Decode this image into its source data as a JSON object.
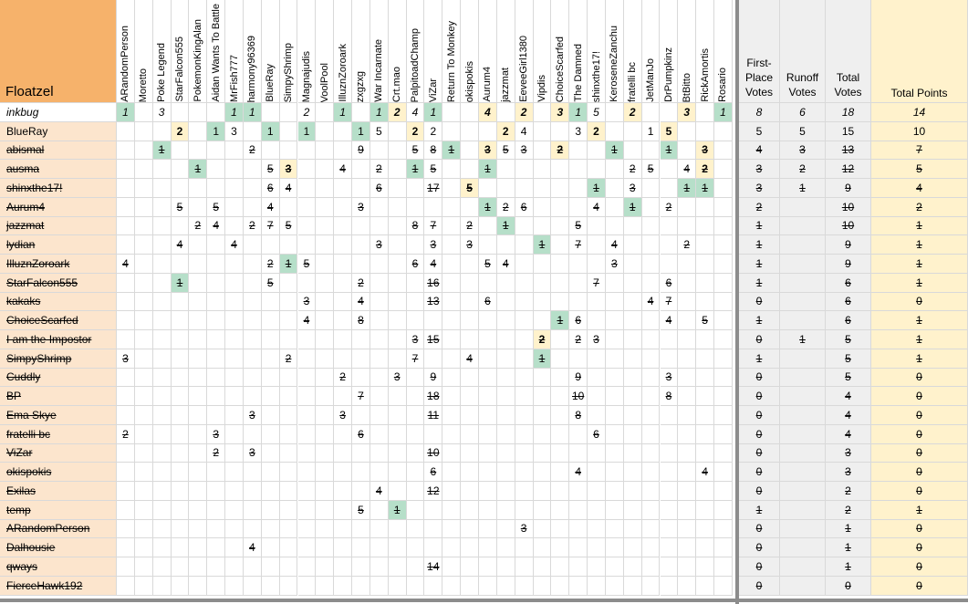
{
  "corner_label": "Floatzel",
  "voters": [
    "ARandomPerson",
    "Moretto",
    "Poke Legend",
    "StarFalcon555",
    "PokemonKingAlan",
    "Aidan Wants To Battle",
    "MrFish777",
    "harmony96369",
    "BlueRay",
    "SimpyShrimp",
    "Magnajudis",
    "VoolPool",
    "IlluznZoroark",
    "zxgzxg",
    "War Incarnate",
    "Crt.mao",
    "PalpitoadChamp",
    "ViZar",
    "Return To Monkey",
    "okispokis",
    "Aurum4",
    "jazzmat",
    "EeveeGirl1380",
    "Vipdis",
    "ChoiceScarfed",
    "The Damned",
    "shinxthe17!",
    "KeroseneZanchu",
    "fratelli bc",
    "JetManJo",
    "DrPumpkinz",
    "BtBitto",
    "RickAmortis",
    "Rosario"
  ],
  "summary_headers": [
    "First-Place Votes",
    "Runoff Votes",
    "Total Votes",
    "Total Points"
  ],
  "colors": {
    "corner": "#f6b26b",
    "row_header": "#fce5cd",
    "first_place": "#b6dfc9",
    "runoff": "#fff2cc",
    "stats": "#efefef",
    "points": "#fff2cc"
  },
  "rows": [
    {
      "name": "inkbug",
      "style": "italic",
      "cells": {
        "0": "1g",
        "2": "3",
        "6": "1g",
        "7": "1g",
        "10": "2",
        "12": "1g",
        "14": "1g",
        "15": "2y",
        "16": "4",
        "17": "1g",
        "20": "4y",
        "22": "2y",
        "24": "3y",
        "25": "1g",
        "26": "5",
        "28": "2y",
        "31": "3y",
        "33": "1g"
      },
      "stats": [
        "8",
        "6",
        "18",
        "14"
      ]
    },
    {
      "name": "BlueRay",
      "style": "normal",
      "cells": {
        "3": "2y",
        "5": "1g",
        "6": "3",
        "8": "1g",
        "10": "1g",
        "13": "1g",
        "14": "5",
        "16": "2y",
        "17": "2",
        "21": "2y",
        "22": "4",
        "25": "3",
        "26": "2y",
        "29": "1",
        "30": "5y"
      },
      "stats": [
        "5",
        "5",
        "15",
        "10"
      ]
    },
    {
      "name": "abismal",
      "style": "strike",
      "cells": {
        "2": "1g",
        "7": "2",
        "13": "9",
        "16": "5",
        "17": "8",
        "18": "1g",
        "20": "3y",
        "21": "5",
        "22": "3",
        "24": "2y",
        "27": "1g",
        "30": "1g",
        "32": "3y"
      },
      "stats": [
        "4",
        "3",
        "13",
        "7"
      ]
    },
    {
      "name": "ausma",
      "style": "strike",
      "cells": {
        "4": "1g",
        "8": "5",
        "9": "3y",
        "12": "4",
        "14": "2",
        "16": "1g",
        "17": "5",
        "20": "1g",
        "28": "2",
        "29": "5",
        "31": "4",
        "32": "2y"
      },
      "stats": [
        "3",
        "2",
        "12",
        "5"
      ]
    },
    {
      "name": "shinxthe17!",
      "style": "strike",
      "cells": {
        "8": "6",
        "9": "4",
        "14": "6",
        "17": "17",
        "19": "5y",
        "26": "1g",
        "28": "3",
        "31": "1g",
        "32": "1g"
      },
      "stats": [
        "3",
        "1",
        "9",
        "4"
      ]
    },
    {
      "name": "Aurum4",
      "style": "strike",
      "cells": {
        "3": "5",
        "5": "5",
        "8": "4",
        "13": "3",
        "20": "1g",
        "21": "2",
        "22": "6",
        "26": "4",
        "28": "1g",
        "30": "2"
      },
      "stats": [
        "2",
        "",
        "10",
        "2"
      ]
    },
    {
      "name": "jazzmat",
      "style": "strike",
      "cells": {
        "4": "2",
        "5": "4",
        "7": "2",
        "8": "7",
        "9": "5",
        "16": "8",
        "17": "7",
        "19": "2",
        "21": "1g",
        "25": "5"
      },
      "stats": [
        "1",
        "",
        "10",
        "1"
      ]
    },
    {
      "name": "lydian",
      "style": "strike",
      "cells": {
        "3": "4",
        "6": "4",
        "14": "3",
        "17": "3",
        "19": "3",
        "23": "1g",
        "25": "7",
        "27": "4",
        "31": "2"
      },
      "stats": [
        "1",
        "",
        "9",
        "1"
      ]
    },
    {
      "name": "IlluznZoroark",
      "style": "strike",
      "cells": {
        "0": "4",
        "8": "2",
        "9": "1g",
        "10": "5",
        "16": "6",
        "17": "4",
        "20": "5",
        "21": "4",
        "27": "3"
      },
      "stats": [
        "1",
        "",
        "9",
        "1"
      ]
    },
    {
      "name": "StarFalcon555",
      "style": "strike",
      "cells": {
        "3": "1g",
        "8": "5",
        "13": "2",
        "17": "16",
        "26": "7",
        "30": "6"
      },
      "stats": [
        "1",
        "",
        "6",
        "1"
      ]
    },
    {
      "name": "kakaks",
      "style": "strike",
      "cells": {
        "10": "3",
        "13": "4",
        "17": "13",
        "20": "6",
        "29": "4",
        "30": "7"
      },
      "stats": [
        "0",
        "",
        "6",
        "0"
      ]
    },
    {
      "name": "ChoiceScarfed",
      "style": "strike",
      "cells": {
        "10": "4",
        "13": "8",
        "24": "1g",
        "25": "6",
        "30": "4",
        "32": "5"
      },
      "stats": [
        "1",
        "",
        "6",
        "1"
      ]
    },
    {
      "name": "I am the Impostor",
      "style": "strike",
      "cells": {
        "16": "3",
        "17": "15",
        "23": "2y",
        "25": "2",
        "26": "3"
      },
      "stats": [
        "0",
        "1",
        "5",
        "1"
      ]
    },
    {
      "name": "SimpyShrimp",
      "style": "strike",
      "cells": {
        "0": "3",
        "9": "2",
        "16": "7",
        "19": "4",
        "23": "1g"
      },
      "stats": [
        "1",
        "",
        "5",
        "1"
      ]
    },
    {
      "name": "Cuddly",
      "style": "strike",
      "cells": {
        "12": "2",
        "15": "3",
        "17": "9",
        "25": "9",
        "30": "3"
      },
      "stats": [
        "0",
        "",
        "5",
        "0"
      ]
    },
    {
      "name": "BP",
      "style": "strike",
      "cells": {
        "13": "7",
        "17": "18",
        "25": "10",
        "30": "8"
      },
      "stats": [
        "0",
        "",
        "4",
        "0"
      ]
    },
    {
      "name": "Ema Skye",
      "style": "strike",
      "cells": {
        "7": "3",
        "12": "3",
        "17": "11",
        "25": "8"
      },
      "stats": [
        "0",
        "",
        "4",
        "0"
      ]
    },
    {
      "name": "fratelli bc",
      "style": "strike",
      "cells": {
        "0": "2",
        "5": "3",
        "13": "6",
        "26": "6"
      },
      "stats": [
        "0",
        "",
        "4",
        "0"
      ]
    },
    {
      "name": "ViZar",
      "style": "strike",
      "cells": {
        "5": "2",
        "7": "3",
        "17": "10"
      },
      "stats": [
        "0",
        "",
        "3",
        "0"
      ]
    },
    {
      "name": "okispokis",
      "style": "strike",
      "cells": {
        "17": "6",
        "25": "4",
        "32": "4"
      },
      "stats": [
        "0",
        "",
        "3",
        "0"
      ]
    },
    {
      "name": "Exilas",
      "style": "strike",
      "cells": {
        "14": "4",
        "17": "12"
      },
      "stats": [
        "0",
        "",
        "2",
        "0"
      ]
    },
    {
      "name": "temp",
      "style": "strike",
      "cells": {
        "13": "5",
        "15": "1g"
      },
      "stats": [
        "1",
        "",
        "2",
        "1"
      ]
    },
    {
      "name": "ARandomPerson",
      "style": "strike",
      "cells": {
        "22": "3"
      },
      "stats": [
        "0",
        "",
        "1",
        "0"
      ]
    },
    {
      "name": "Dalhousie",
      "style": "strike",
      "cells": {
        "7": "4"
      },
      "stats": [
        "0",
        "",
        "1",
        "0"
      ]
    },
    {
      "name": "qways",
      "style": "strike",
      "cells": {
        "17": "14"
      },
      "stats": [
        "0",
        "",
        "1",
        "0"
      ]
    },
    {
      "name": "FierceHawk192",
      "style": "strike",
      "cells": {},
      "stats": [
        "0",
        "",
        "0",
        "0"
      ]
    }
  ]
}
